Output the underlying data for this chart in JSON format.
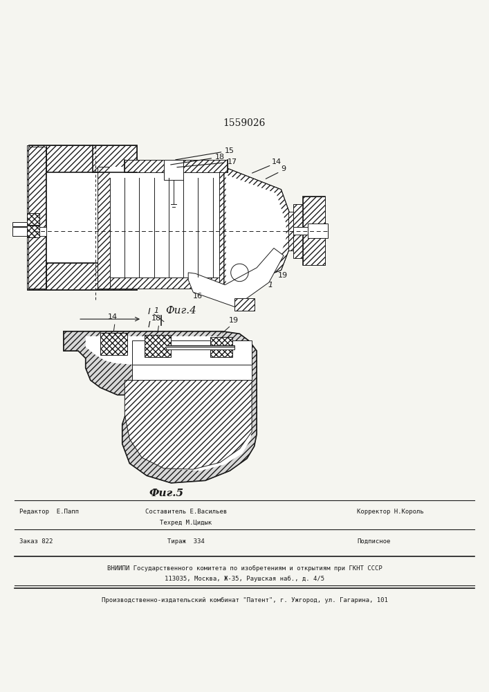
{
  "patent_number": "1559026",
  "fig4_caption": "Фиг.4",
  "fig5_caption": "Фиг.5",
  "footer_line1_left": "Редактор  Е.Папп",
  "footer_line1_center": "Составитель Е.Васильев",
  "footer_line1_right": "Корректор Н.Король",
  "footer_line2_center": "Техред М.Цидык",
  "footer_line3_left": "Заказ 822",
  "footer_line3_center": "Тираж  334",
  "footer_line3_right": "Подписное",
  "footer_vnipi": "ВНИИПИ Государственного комитета по изобретениям и открытиям при ГКНТ СССР",
  "footer_address": "113035, Москва, Ж-35, Раушская наб., д. 4/5",
  "footer_production": "Производственно-издательский комбинат \"Патент\", г. Ужгород, ул. Гагарина, 101",
  "bg_color": "#f5f5f0",
  "line_color": "#1a1a1a"
}
